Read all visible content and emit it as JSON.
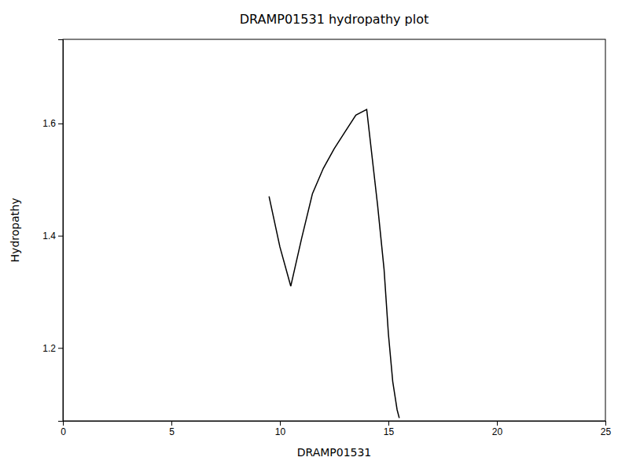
{
  "chart_data": {
    "type": "line",
    "title": "DRAMP01531 hydropathy plot",
    "xlabel": "DRAMP01531",
    "ylabel": "Hydropathy",
    "x": [
      9.5,
      10.0,
      10.5,
      11.0,
      11.5,
      12.0,
      12.5,
      13.0,
      13.5,
      14.0,
      14.5,
      14.8,
      15.0,
      15.2,
      15.4,
      15.5
    ],
    "values": [
      1.47,
      1.38,
      1.31,
      1.395,
      1.475,
      1.52,
      1.555,
      1.585,
      1.615,
      1.625,
      1.455,
      1.34,
      1.225,
      1.14,
      1.09,
      1.075
    ],
    "color": "black",
    "xlim": [
      0,
      25
    ],
    "ylim": [
      1.07,
      1.75
    ],
    "xticks": [
      0,
      5,
      10,
      15,
      20,
      25
    ],
    "yticks": [
      1.2,
      1.4,
      1.6
    ],
    "grid": false
  }
}
